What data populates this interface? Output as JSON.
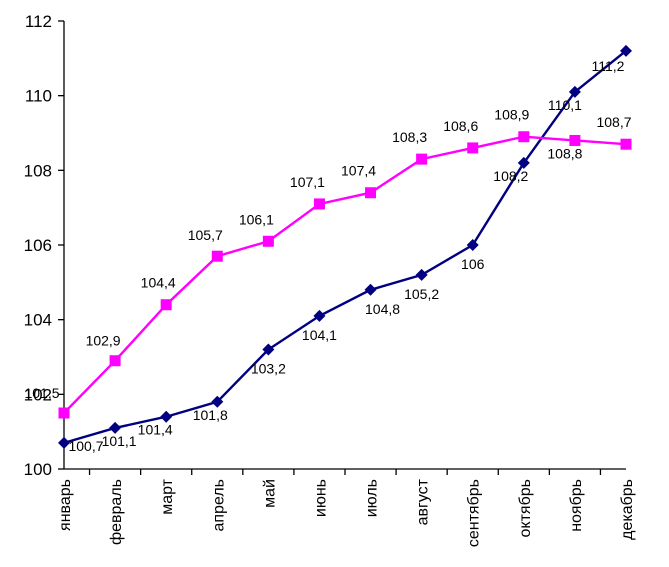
{
  "chart_data": {
    "type": "line",
    "title": "",
    "xlabel": "",
    "ylabel": "",
    "ylim": [
      100,
      112
    ],
    "yticks": [
      "100",
      "102",
      "104",
      "106",
      "108",
      "110",
      "112"
    ],
    "categories": [
      "январь",
      "февраль",
      "март",
      "апрель",
      "май",
      "июнь",
      "июль",
      "август",
      "сентябрь",
      "октябрь",
      "ноябрь",
      "декабрь"
    ],
    "grid": false,
    "legend": "none",
    "series": [
      {
        "color": "#000080",
        "marker": "diamond",
        "values": [
          100.7,
          101.1,
          101.4,
          101.8,
          103.2,
          104.1,
          104.8,
          105.2,
          106,
          108.2,
          110.1,
          111.2
        ],
        "labels": [
          "100,7",
          "101,1",
          "101,4",
          "101,8",
          "103,2",
          "104,1",
          "104,8",
          "105,2",
          "106",
          "108,2",
          "110,1",
          "111,2"
        ]
      },
      {
        "color": "#FF00FF",
        "marker": "square",
        "values": [
          101.5,
          102.9,
          104.4,
          105.7,
          106.1,
          107.1,
          107.4,
          108.3,
          108.6,
          108.9,
          108.8,
          108.7
        ],
        "labels": [
          "101,5",
          "102,9",
          "104,4",
          "105,7",
          "106,1",
          "107,1",
          "107,4",
          "108,3",
          "108,6",
          "108,9",
          "108,8",
          "108,7"
        ]
      }
    ]
  }
}
